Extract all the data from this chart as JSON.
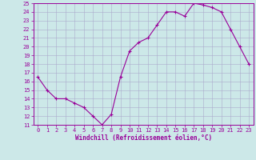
{
  "x": [
    0,
    1,
    2,
    3,
    4,
    5,
    6,
    7,
    8,
    9,
    10,
    11,
    12,
    13,
    14,
    15,
    16,
    17,
    18,
    19,
    20,
    21,
    22,
    23
  ],
  "y": [
    16.5,
    15.0,
    14.0,
    14.0,
    13.5,
    13.0,
    12.0,
    11.0,
    12.2,
    16.5,
    19.5,
    20.5,
    21.0,
    22.5,
    24.0,
    24.0,
    23.5,
    25.0,
    24.8,
    24.5,
    24.0,
    22.0,
    20.0,
    18.0
  ],
  "line_color": "#990099",
  "marker": "+",
  "marker_size": 3,
  "marker_lw": 0.8,
  "line_width": 0.8,
  "bg_color": "#cce8e8",
  "grid_color": "#aaaacc",
  "xlabel": "Windchill (Refroidissement éolien,°C)",
  "xlabel_color": "#990099",
  "tick_color": "#990099",
  "spine_color": "#990099",
  "ylim": [
    11,
    25
  ],
  "xlim": [
    -0.5,
    23.5
  ],
  "yticks": [
    11,
    12,
    13,
    14,
    15,
    16,
    17,
    18,
    19,
    20,
    21,
    22,
    23,
    24,
    25
  ],
  "xticks": [
    0,
    1,
    2,
    3,
    4,
    5,
    6,
    7,
    8,
    9,
    10,
    11,
    12,
    13,
    14,
    15,
    16,
    17,
    18,
    19,
    20,
    21,
    22,
    23
  ],
  "tick_fontsize": 5.0,
  "xlabel_fontsize": 5.5,
  "xlabel_fontweight": "bold"
}
